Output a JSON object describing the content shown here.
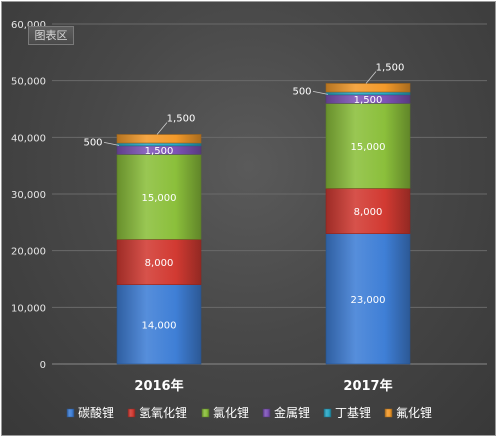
{
  "plot_area_tag": "图表区",
  "colors": {
    "碳酸锂": "#3f7fd6",
    "氢氧化锂": "#d23a32",
    "氯化锂": "#8bbf3b",
    "金属锂": "#7e53b7",
    "丁基锂": "#2aa8c6",
    "氟化锂": "#f39a2a"
  },
  "chart_data": {
    "type": "bar",
    "stacked": true,
    "categories": [
      "2016年",
      "2017年"
    ],
    "series": [
      {
        "name": "碳酸锂",
        "values": [
          14000,
          23000
        ],
        "labels": [
          "14,000",
          "23,000"
        ]
      },
      {
        "name": "氢氧化锂",
        "values": [
          8000,
          8000
        ],
        "labels": [
          "8,000",
          "8,000"
        ]
      },
      {
        "name": "氯化锂",
        "values": [
          15000,
          15000
        ],
        "labels": [
          "15,000",
          "15,000"
        ]
      },
      {
        "name": "金属锂",
        "values": [
          1500,
          1500
        ],
        "labels": [
          "1,500",
          "1,500"
        ]
      },
      {
        "name": "丁基锂",
        "values": [
          500,
          500
        ],
        "labels": [
          "500",
          "500"
        ]
      },
      {
        "name": "氟化锂",
        "values": [
          1500,
          1500
        ],
        "labels": [
          "1,500",
          "1,500"
        ]
      }
    ],
    "ylim": [
      0,
      60000
    ],
    "yticks": [
      0,
      10000,
      20000,
      30000,
      40000,
      50000,
      60000
    ],
    "ytick_labels": [
      "0",
      "10,000",
      "20,000",
      "30,000",
      "40,000",
      "50,000",
      "60,000"
    ],
    "grid": true,
    "legend_position": "bottom"
  }
}
